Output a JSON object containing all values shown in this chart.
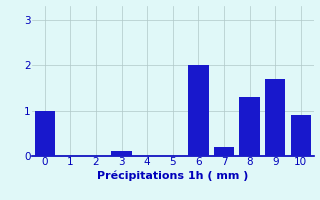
{
  "categories": [
    0,
    1,
    2,
    3,
    4,
    5,
    6,
    7,
    8,
    9,
    10
  ],
  "values": [
    1.0,
    0.0,
    0.0,
    0.1,
    0.0,
    0.0,
    2.0,
    0.2,
    1.3,
    1.7,
    0.9
  ],
  "bar_color": "#1818cc",
  "background_color": "#e0f8f8",
  "xlabel": "Précipitations 1h ( mm )",
  "ylabel": "",
  "xlim": [
    -0.5,
    10.5
  ],
  "ylim": [
    0,
    3.3
  ],
  "yticks": [
    0,
    1,
    2,
    3
  ],
  "xticks": [
    0,
    1,
    2,
    3,
    4,
    5,
    6,
    7,
    8,
    9,
    10
  ],
  "grid_color": "#b0c8c8",
  "tick_label_color": "#0000bb",
  "xlabel_color": "#0000bb",
  "xlabel_fontsize": 8,
  "tick_fontsize": 7.5,
  "bar_width": 0.8
}
